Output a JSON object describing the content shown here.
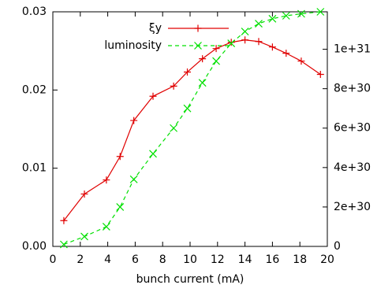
{
  "chart_data": {
    "type": "line",
    "x_label": "bunch current (mA)",
    "x": [
      0.8,
      2.3,
      3.9,
      4.9,
      5.9,
      7.3,
      8.8,
      9.8,
      10.9,
      11.9,
      13.0,
      14.0,
      15.0,
      16.0,
      17.0,
      18.1,
      19.5
    ],
    "series": [
      {
        "name": "ξy",
        "color": "#e00000",
        "marker": "plus",
        "dashed": false,
        "values": [
          0.0033,
          0.0067,
          0.0085,
          0.0115,
          0.0161,
          0.0192,
          0.0205,
          0.0223,
          0.024,
          0.0253,
          0.0261,
          0.0264,
          0.0262,
          0.0255,
          0.0247,
          0.0237,
          0.022
        ]
      },
      {
        "name": "luminosity",
        "color": "#00e000",
        "marker": "cross",
        "dashed": true,
        "axis": "y2",
        "values": [
          1e+29,
          5e+29,
          1e+30,
          2e+30,
          3.4e+30,
          4.7e+30,
          6e+30,
          7e+30,
          8.3e+30,
          9.4e+30,
          1.03e+31,
          1.09e+31,
          1.13e+31,
          1.155e+31,
          1.17e+31,
          1.18e+31,
          1.19e+31
        ]
      }
    ],
    "xlim": [
      0,
      20
    ],
    "xticks": [
      0,
      2,
      4,
      6,
      8,
      10,
      12,
      14,
      16,
      18,
      20
    ],
    "ylim": [
      0,
      0.03
    ],
    "yticks": [
      {
        "value": 0,
        "label": "0.00"
      },
      {
        "value": 0.01,
        "label": "0.01"
      },
      {
        "value": 0.02,
        "label": "0.02"
      },
      {
        "value": 0.03,
        "label": "0.03"
      }
    ],
    "y2lim": [
      0,
      1.19e+31
    ],
    "y2ticks": [
      0,
      {
        "value": 2e+30,
        "label": "2e+30"
      },
      {
        "value": 4e+30,
        "label": "4e+30"
      },
      {
        "value": 6e+30,
        "label": "6e+30"
      },
      {
        "value": 8e+30,
        "label": "8e+30"
      },
      {
        "value": 1e+31,
        "label": "1e+31"
      }
    ]
  }
}
